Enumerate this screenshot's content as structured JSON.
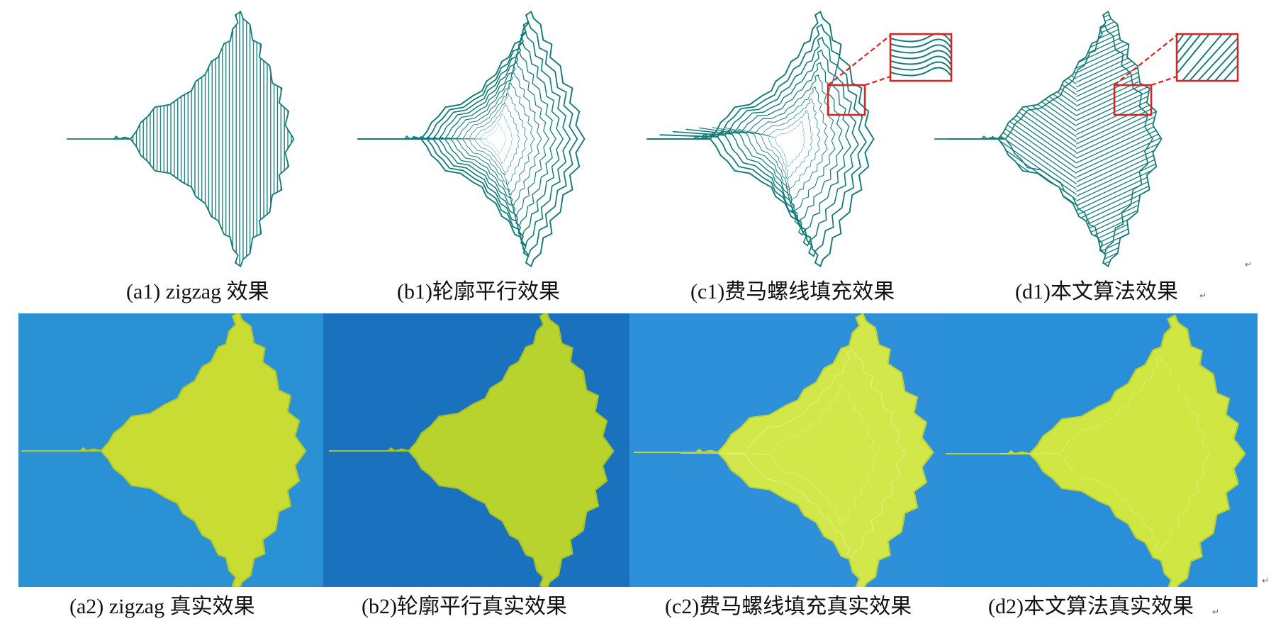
{
  "captions": {
    "a1": "(a1) zigzag 效果",
    "b1": "(b1)轮廓平行效果",
    "c1": "(c1)费马螺线填充效果",
    "d1": "(d1)本文算法效果",
    "a2": "(a2) zigzag 真实效果",
    "b2": "(b2)轮廓平行真实效果",
    "c2": "(c2)费马螺线填充真实效果",
    "d2": "(d2)本文算法真实效果"
  },
  "marks": {
    "return_symbol": "↵"
  },
  "colors": {
    "path_teal": "#147a7a",
    "zoom_red": "#e02020",
    "print_yellow": "#c8e03a",
    "bed_blue": "#1a78c8"
  },
  "panels": {
    "top": [
      {
        "id": "a1",
        "pattern": "zigzag",
        "zoom": false
      },
      {
        "id": "b1",
        "pattern": "contour-parallel",
        "zoom": false
      },
      {
        "id": "c1",
        "pattern": "fermat-spiral",
        "zoom": true
      },
      {
        "id": "d1",
        "pattern": "proposed-algorithm",
        "zoom": true
      }
    ],
    "bottom": [
      {
        "id": "a2",
        "pattern": "zigzag-photo",
        "bed": "#1f86cc"
      },
      {
        "id": "b2",
        "pattern": "contour-photo",
        "bed": "#1565b5"
      },
      {
        "id": "c2",
        "pattern": "fermat-photo",
        "bed": "#1a7fd0"
      },
      {
        "id": "d2",
        "pattern": "proposed-photo",
        "bed": "#1a82d2"
      }
    ]
  }
}
